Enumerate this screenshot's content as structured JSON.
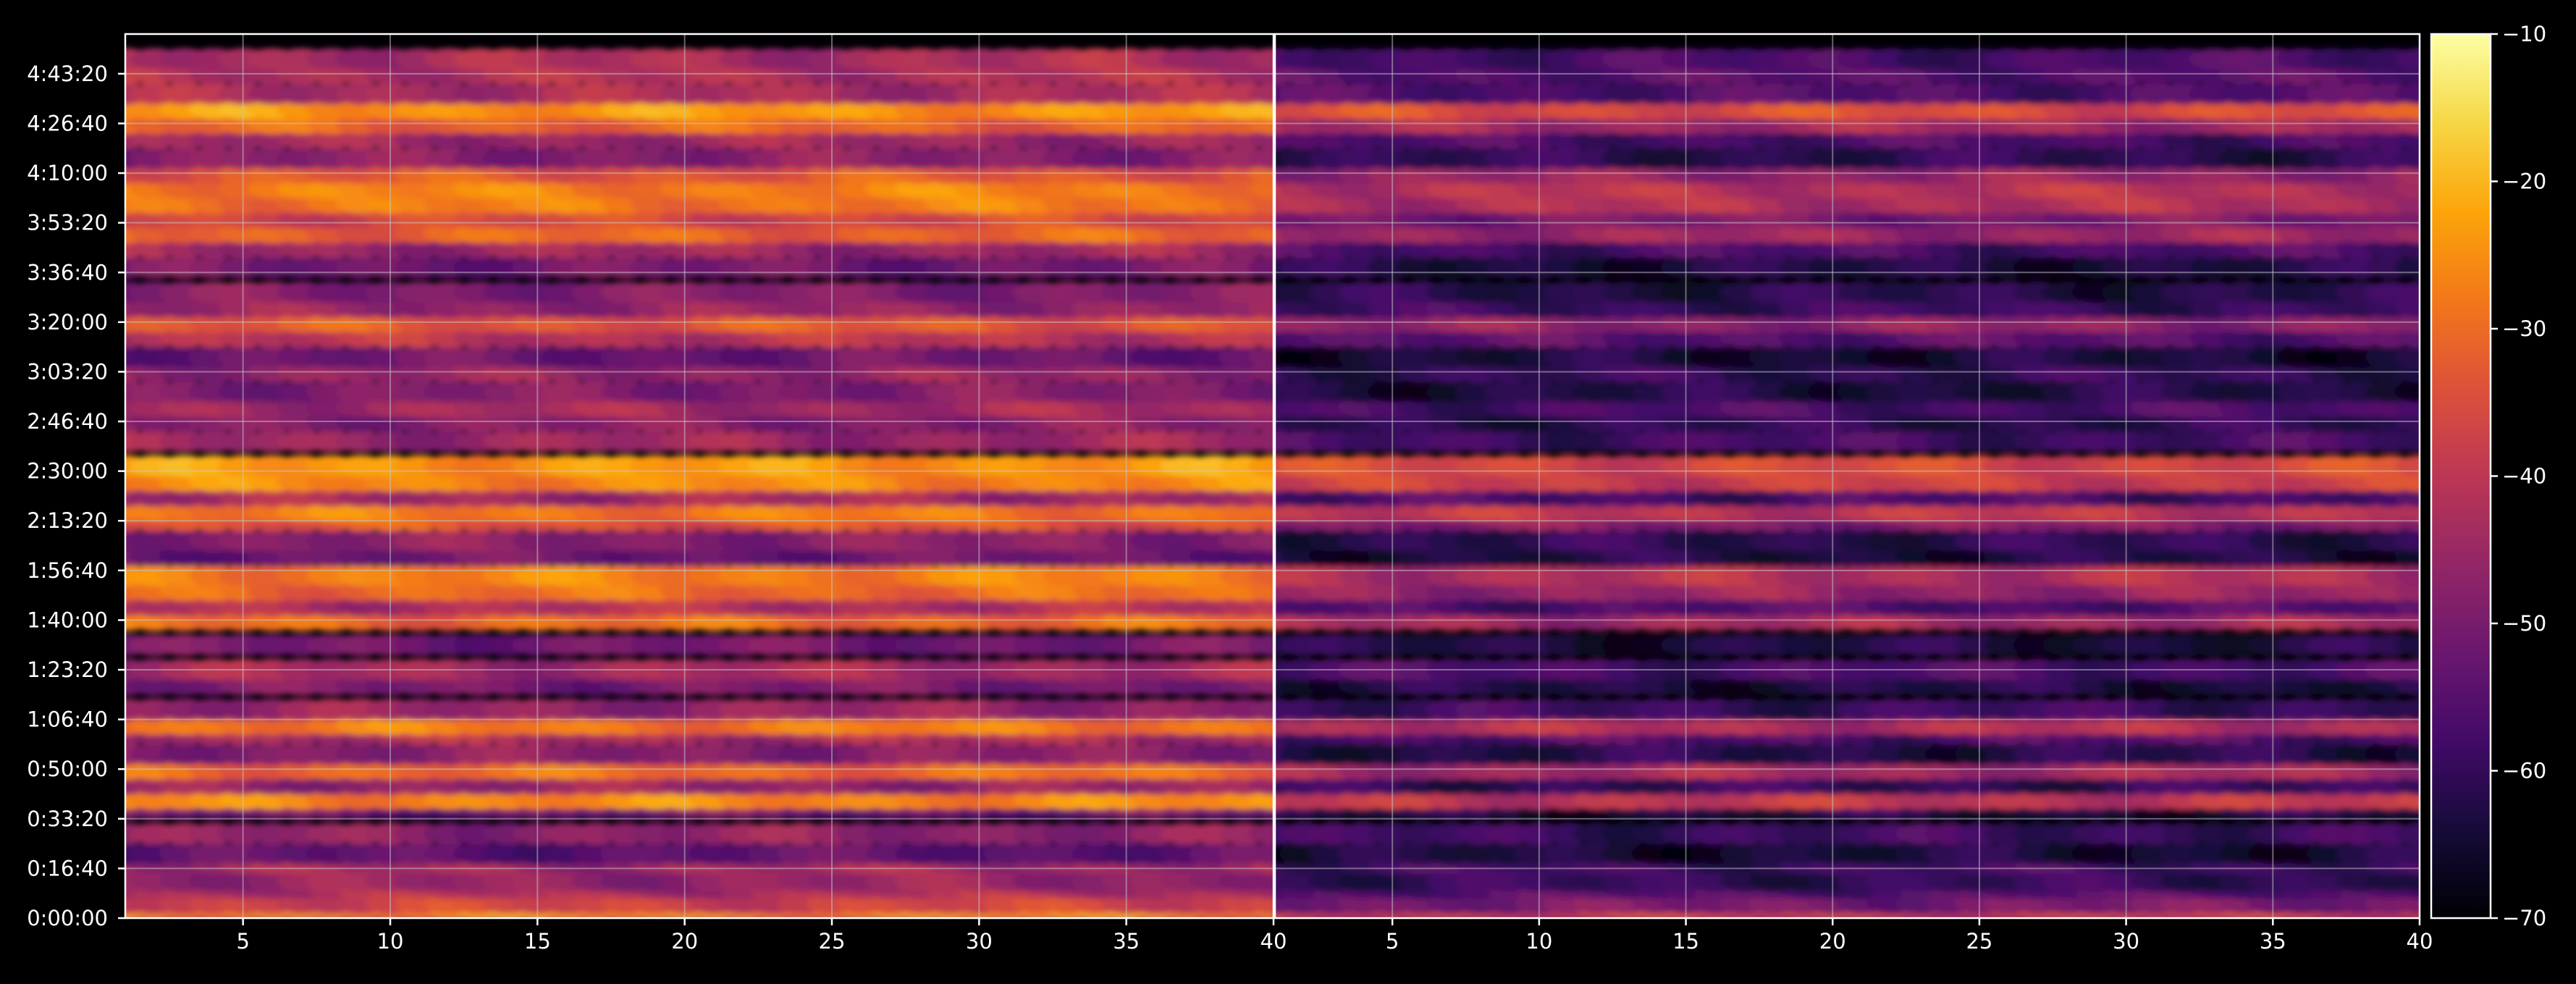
{
  "chart_data": [
    {
      "type": "heatmap",
      "panel": "left",
      "x_ticks": [
        5,
        10,
        15,
        20,
        25,
        30,
        35,
        40
      ],
      "xlim": [
        1,
        40
      ],
      "y_ticks": [
        "0:00:00",
        "0:16:40",
        "0:33:20",
        "0:50:00",
        "1:06:40",
        "1:23:20",
        "1:40:00",
        "1:56:40",
        "2:13:20",
        "2:30:00",
        "2:46:40",
        "3:03:20",
        "3:20:00",
        "3:36:40",
        "3:53:20",
        "4:10:00",
        "4:26:40",
        "4:43:20"
      ],
      "ylim_seconds": [
        0,
        17800
      ],
      "grid": true,
      "colormap": "inferno",
      "row_times": [
        "0:01:40",
        "0:03:20",
        "0:05:00",
        "0:10:00",
        "0:12:30",
        "0:18:20",
        "0:21:40",
        "0:28:20",
        "0:36:40",
        "0:40:00",
        "0:45:00",
        "0:50:00",
        "0:55:00",
        "1:01:40",
        "1:05:00",
        "1:10:00",
        "1:18:20",
        "1:23:20",
        "1:31:40",
        "1:40:00",
        "1:45:00",
        "1:50:00",
        "1:55:00",
        "2:01:40",
        "2:06:40",
        "2:13:20",
        "2:16:40",
        "2:21:40",
        "2:26:40",
        "2:31:40",
        "2:40:00",
        "2:46:40",
        "2:51:40",
        "2:56:40",
        "3:03:20",
        "3:08:20",
        "3:15:00",
        "3:20:00",
        "3:25:00",
        "3:30:00",
        "3:38:20",
        "3:45:00",
        "3:50:00",
        "3:55:00",
        "4:00:00",
        "4:05:00",
        "4:10:00",
        "4:15:00",
        "4:21:40",
        "4:26:40",
        "4:31:40",
        "4:36:40",
        "4:43:20",
        "4:48:20"
      ],
      "row_levels_db": [
        -48,
        -25,
        -37,
        -42,
        -46,
        -44,
        -54,
        -47,
        -52,
        -26,
        -46,
        -30,
        -48,
        -43,
        -28,
        -46,
        -50,
        -44,
        -51,
        -30,
        -42,
        -30,
        -27,
        -52,
        -48,
        -34,
        -28,
        -44,
        -26,
        -24,
        -45,
        -48,
        -44,
        -49,
        -46,
        -52,
        -41,
        -33,
        -46,
        -49,
        -51,
        -45,
        -31,
        -36,
        -28,
        -27,
        -33,
        -48,
        -45,
        -31,
        -24,
        -43,
        -42,
        -43
      ]
    },
    {
      "type": "heatmap",
      "panel": "right",
      "x_ticks": [
        5,
        10,
        15,
        20,
        25,
        30,
        35,
        40
      ],
      "xlim": [
        1,
        40
      ],
      "y_ticks": [],
      "ylim_seconds": [
        0,
        17800
      ],
      "grid": true,
      "colormap": "inferno",
      "row_times": [
        "0:01:40",
        "0:03:20",
        "0:05:00",
        "0:10:00",
        "0:12:30",
        "0:18:20",
        "0:21:40",
        "0:28:20",
        "0:36:40",
        "0:40:00",
        "0:45:00",
        "0:50:00",
        "0:55:00",
        "1:01:40",
        "1:05:00",
        "1:10:00",
        "1:18:20",
        "1:23:20",
        "1:31:40",
        "1:40:00",
        "1:45:00",
        "1:50:00",
        "1:55:00",
        "2:01:40",
        "2:06:40",
        "2:13:20",
        "2:16:40",
        "2:21:40",
        "2:26:40",
        "2:31:40",
        "2:40:00",
        "2:46:40",
        "2:51:40",
        "2:56:40",
        "3:03:20",
        "3:08:20",
        "3:15:00",
        "3:20:00",
        "3:25:00",
        "3:30:00",
        "3:38:20",
        "3:45:00",
        "3:50:00",
        "3:55:00",
        "4:00:00",
        "4:05:00",
        "4:10:00",
        "4:15:00",
        "4:21:40",
        "4:26:40",
        "4:31:40",
        "4:36:40",
        "4:43:20",
        "4:48:20"
      ],
      "row_levels_db": [
        -56,
        -37,
        -50,
        -55,
        -60,
        -58,
        -64,
        -59,
        -63,
        -40,
        -60,
        -44,
        -62,
        -56,
        -42,
        -59,
        -63,
        -57,
        -63,
        -44,
        -56,
        -46,
        -42,
        -63,
        -61,
        -49,
        -40,
        -57,
        -38,
        -36,
        -58,
        -61,
        -57,
        -63,
        -60,
        -64,
        -55,
        -47,
        -59,
        -62,
        -63,
        -57,
        -45,
        -50,
        -42,
        -41,
        -46,
        -61,
        -57,
        -44,
        -35,
        -56,
        -55,
        -57
      ]
    }
  ],
  "colorbar": {
    "ticks": [
      "−70",
      "−60",
      "−50",
      "−40",
      "−30",
      "−20",
      "−10"
    ],
    "range": [
      -70,
      -10
    ],
    "colormap": "inferno"
  },
  "colors": {
    "background": "#000000",
    "axis": "#ffffff",
    "grid": "#c8c8c8",
    "text": "#ffffff"
  }
}
